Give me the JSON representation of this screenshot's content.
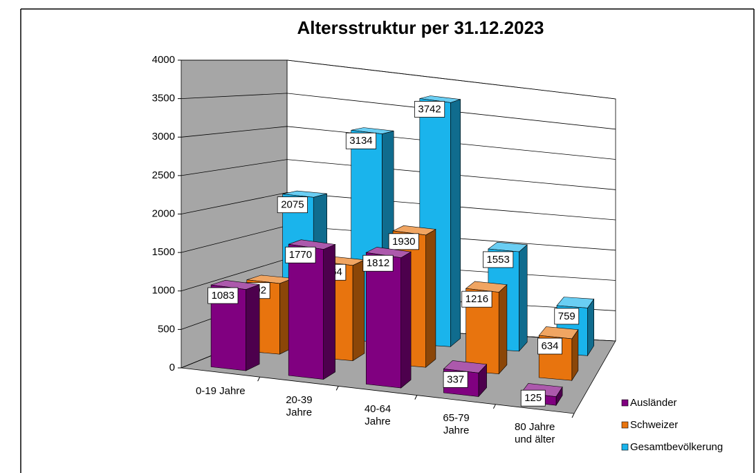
{
  "chart_data": {
    "type": "bar3d",
    "title": "Altersstruktur per 31.12.2023",
    "categories": [
      "0-19 Jahre",
      "20-39\nJahre",
      "40-64\nJahre",
      "65-79\nJahre",
      "80 Jahre\nund älter"
    ],
    "series": [
      {
        "name": "Ausländer",
        "color": "#800080",
        "values": [
          1083,
          1770,
          1812,
          337,
          125
        ]
      },
      {
        "name": "Schweizer",
        "color": "#e8740e",
        "values": [
          992,
          1364,
          1930,
          1216,
          634
        ]
      },
      {
        "name": "Gesamtbevölkerung",
        "color": "#1ab4ec",
        "values": [
          2075,
          3134,
          3742,
          1553,
          759
        ]
      }
    ],
    "ylim": [
      0,
      4000
    ],
    "yticks": [
      0,
      500,
      1000,
      1500,
      2000,
      2500,
      3000,
      3500,
      4000
    ],
    "grid": true,
    "legend": "bottom-right"
  }
}
